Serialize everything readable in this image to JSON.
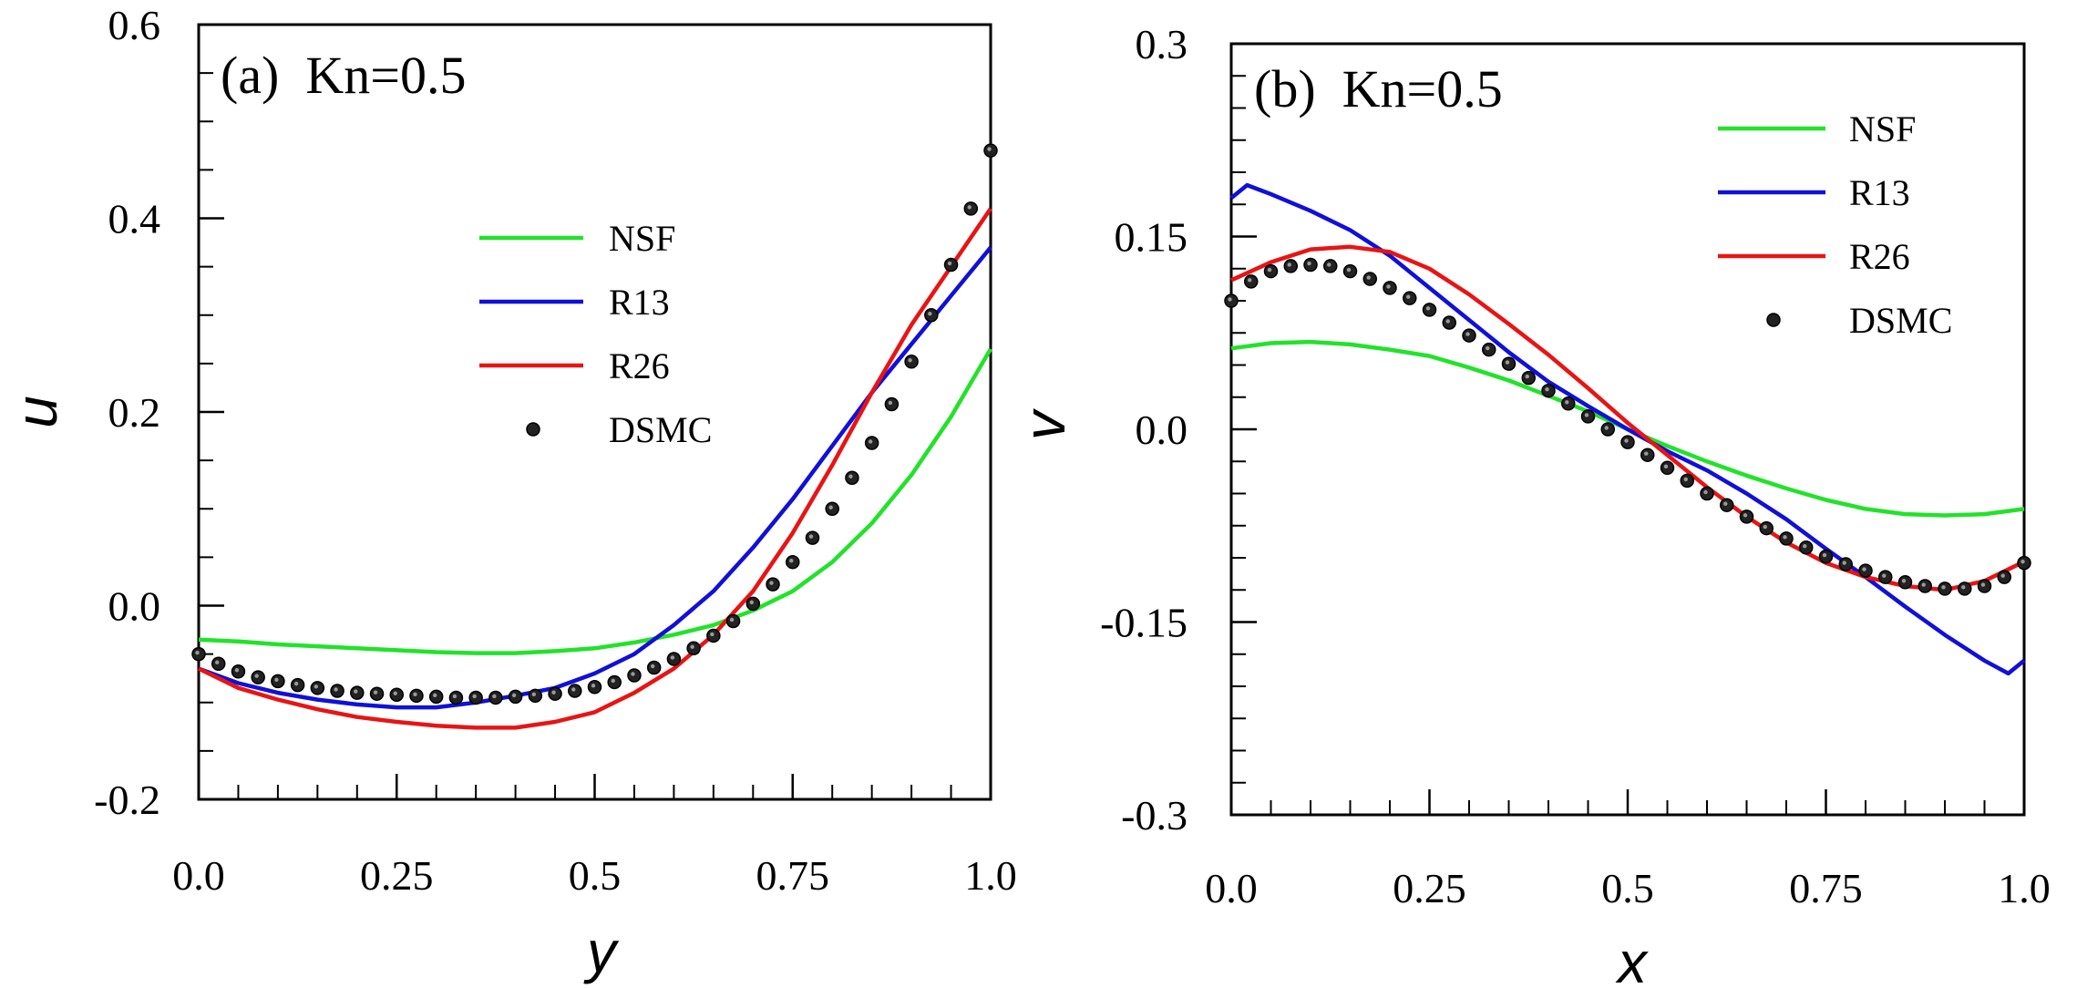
{
  "colors": {
    "NSF": "#22e22a",
    "R13": "#1010d8",
    "R26": "#e81414",
    "DSMC": "#000000"
  },
  "chart_data": [
    {
      "type": "line",
      "panel": "a",
      "title": "(a)  Kn=0.5",
      "xlabel": "y",
      "ylabel": "u",
      "xlim": [
        0,
        1
      ],
      "ylim": [
        -0.2,
        0.6
      ],
      "xticks": [
        0,
        0.25,
        0.5,
        0.75,
        1
      ],
      "xtick_labels": [
        "0.0",
        "0.25",
        "0.5",
        "0.75",
        "1.0"
      ],
      "yticks": [
        -0.2,
        0,
        0.2,
        0.4,
        0.6
      ],
      "ytick_labels": [
        "-0.2",
        "0.0",
        "0.2",
        "0.4",
        "0.6"
      ],
      "legend_placement": "center",
      "series": [
        {
          "name": "NSF",
          "style": "line",
          "x": [
            0,
            0.05,
            0.1,
            0.15,
            0.2,
            0.25,
            0.3,
            0.35,
            0.4,
            0.45,
            0.5,
            0.55,
            0.6,
            0.65,
            0.7,
            0.75,
            0.8,
            0.85,
            0.9,
            0.95,
            1.0
          ],
          "y": [
            -0.035,
            -0.037,
            -0.04,
            -0.042,
            -0.044,
            -0.046,
            -0.048,
            -0.049,
            -0.049,
            -0.047,
            -0.044,
            -0.038,
            -0.03,
            -0.02,
            -0.005,
            0.015,
            0.045,
            0.085,
            0.135,
            0.195,
            0.265
          ]
        },
        {
          "name": "R13",
          "style": "line",
          "x": [
            0,
            0.05,
            0.1,
            0.15,
            0.2,
            0.25,
            0.3,
            0.35,
            0.4,
            0.45,
            0.5,
            0.55,
            0.6,
            0.65,
            0.7,
            0.75,
            0.8,
            0.85,
            0.9,
            0.95,
            1.0
          ],
          "y": [
            -0.065,
            -0.08,
            -0.09,
            -0.097,
            -0.102,
            -0.105,
            -0.105,
            -0.1,
            -0.093,
            -0.085,
            -0.07,
            -0.05,
            -0.02,
            0.015,
            0.06,
            0.11,
            0.165,
            0.22,
            0.27,
            0.32,
            0.37
          ]
        },
        {
          "name": "R26",
          "style": "line",
          "x": [
            0,
            0.05,
            0.1,
            0.15,
            0.2,
            0.25,
            0.3,
            0.35,
            0.4,
            0.45,
            0.5,
            0.55,
            0.6,
            0.65,
            0.7,
            0.75,
            0.8,
            0.85,
            0.9,
            0.95,
            1.0
          ],
          "y": [
            -0.065,
            -0.085,
            -0.097,
            -0.107,
            -0.115,
            -0.12,
            -0.124,
            -0.126,
            -0.126,
            -0.12,
            -0.11,
            -0.09,
            -0.065,
            -0.03,
            0.015,
            0.075,
            0.145,
            0.22,
            0.29,
            0.35,
            0.41
          ]
        },
        {
          "name": "DSMC",
          "style": "marker",
          "x": [
            0.0,
            0.025,
            0.05,
            0.075,
            0.1,
            0.125,
            0.15,
            0.175,
            0.2,
            0.225,
            0.25,
            0.275,
            0.3,
            0.325,
            0.35,
            0.375,
            0.4,
            0.425,
            0.45,
            0.475,
            0.5,
            0.525,
            0.55,
            0.575,
            0.6,
            0.625,
            0.65,
            0.675,
            0.7,
            0.725,
            0.75,
            0.775,
            0.8,
            0.825,
            0.85,
            0.875,
            0.9,
            0.925,
            0.95,
            0.975,
            1.0
          ],
          "y": [
            -0.05,
            -0.06,
            -0.068,
            -0.074,
            -0.078,
            -0.082,
            -0.085,
            -0.088,
            -0.09,
            -0.091,
            -0.092,
            -0.093,
            -0.094,
            -0.095,
            -0.095,
            -0.095,
            -0.094,
            -0.093,
            -0.091,
            -0.088,
            -0.084,
            -0.079,
            -0.072,
            -0.064,
            -0.055,
            -0.044,
            -0.031,
            -0.016,
            0.002,
            0.022,
            0.045,
            0.07,
            0.1,
            0.132,
            0.168,
            0.208,
            0.252,
            0.3,
            0.352,
            0.41,
            0.47
          ]
        }
      ]
    },
    {
      "type": "line",
      "panel": "b",
      "title": "(b)  Kn=0.5",
      "xlabel": "x",
      "ylabel": "v",
      "xlim": [
        0,
        1
      ],
      "ylim": [
        -0.3,
        0.3
      ],
      "xticks": [
        0,
        0.25,
        0.5,
        0.75,
        1
      ],
      "xtick_labels": [
        "0.0",
        "0.25",
        "0.5",
        "0.75",
        "1.0"
      ],
      "yticks": [
        -0.3,
        -0.15,
        0,
        0.15,
        0.3
      ],
      "ytick_labels": [
        "-0.3",
        "-0.15",
        "0.0",
        "0.15",
        "0.3"
      ],
      "legend_placement": "top-right",
      "series": [
        {
          "name": "NSF",
          "style": "line",
          "x": [
            0,
            0.05,
            0.1,
            0.15,
            0.2,
            0.25,
            0.3,
            0.35,
            0.4,
            0.45,
            0.5,
            0.55,
            0.6,
            0.65,
            0.7,
            0.75,
            0.8,
            0.85,
            0.9,
            0.95,
            1.0
          ],
          "y": [
            0.063,
            0.067,
            0.068,
            0.066,
            0.062,
            0.057,
            0.048,
            0.038,
            0.026,
            0.014,
            0.0,
            -0.013,
            -0.025,
            -0.036,
            -0.046,
            -0.055,
            -0.062,
            -0.066,
            -0.067,
            -0.066,
            -0.062
          ]
        },
        {
          "name": "R13",
          "style": "line",
          "x": [
            0,
            0.02,
            0.05,
            0.1,
            0.15,
            0.2,
            0.25,
            0.3,
            0.35,
            0.4,
            0.45,
            0.5,
            0.55,
            0.6,
            0.65,
            0.7,
            0.75,
            0.8,
            0.85,
            0.9,
            0.95,
            0.98,
            1.0
          ],
          "y": [
            0.18,
            0.19,
            0.183,
            0.17,
            0.155,
            0.135,
            0.11,
            0.085,
            0.06,
            0.037,
            0.018,
            0.0,
            -0.017,
            -0.032,
            -0.05,
            -0.07,
            -0.093,
            -0.115,
            -0.138,
            -0.16,
            -0.18,
            -0.19,
            -0.18
          ]
        },
        {
          "name": "R26",
          "style": "line",
          "x": [
            0,
            0.05,
            0.1,
            0.15,
            0.2,
            0.25,
            0.3,
            0.35,
            0.4,
            0.45,
            0.5,
            0.55,
            0.6,
            0.65,
            0.7,
            0.75,
            0.8,
            0.85,
            0.9,
            0.95,
            1.0
          ],
          "y": [
            0.116,
            0.13,
            0.14,
            0.142,
            0.138,
            0.125,
            0.105,
            0.082,
            0.058,
            0.032,
            0.005,
            -0.02,
            -0.045,
            -0.068,
            -0.088,
            -0.104,
            -0.115,
            -0.122,
            -0.125,
            -0.118,
            -0.103
          ]
        },
        {
          "name": "DSMC",
          "style": "marker",
          "x": [
            0.0,
            0.025,
            0.05,
            0.075,
            0.1,
            0.125,
            0.15,
            0.175,
            0.2,
            0.225,
            0.25,
            0.275,
            0.3,
            0.325,
            0.35,
            0.375,
            0.4,
            0.425,
            0.45,
            0.475,
            0.5,
            0.525,
            0.55,
            0.575,
            0.6,
            0.625,
            0.65,
            0.675,
            0.7,
            0.725,
            0.75,
            0.775,
            0.8,
            0.825,
            0.85,
            0.875,
            0.9,
            0.925,
            0.95,
            0.975,
            1.0
          ],
          "y": [
            0.1,
            0.115,
            0.123,
            0.127,
            0.128,
            0.127,
            0.123,
            0.117,
            0.11,
            0.102,
            0.093,
            0.083,
            0.073,
            0.062,
            0.051,
            0.04,
            0.03,
            0.02,
            0.01,
            0.0,
            -0.01,
            -0.02,
            -0.03,
            -0.04,
            -0.05,
            -0.059,
            -0.068,
            -0.077,
            -0.085,
            -0.092,
            -0.099,
            -0.105,
            -0.11,
            -0.115,
            -0.119,
            -0.122,
            -0.124,
            -0.124,
            -0.122,
            -0.115,
            -0.104
          ]
        }
      ]
    }
  ]
}
